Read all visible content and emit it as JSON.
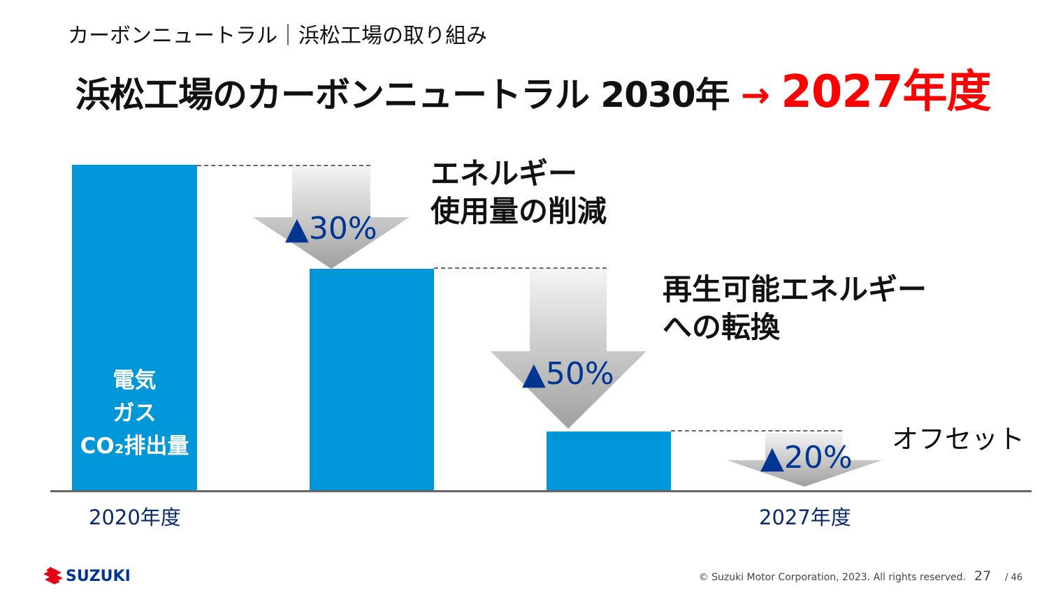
{
  "subtitle": "カーボンニュートラル｜浜松工場の取り組み",
  "title": {
    "main": "浜松工場のカーボンニュートラル 2030年",
    "arrow": "→",
    "target": "2027年度",
    "target_color": "#ff0000"
  },
  "bars": {
    "color": "#0097d9",
    "first_label": [
      "電気",
      "ガス",
      "CO₂排出量"
    ]
  },
  "steps": [
    {
      "reduction": "▲30%",
      "label": [
        "エネルギー",
        "使用量の削減"
      ]
    },
    {
      "reduction": "▲50%",
      "label": [
        "再生可能エネルギー",
        "への転換"
      ]
    },
    {
      "reduction": "▲20%",
      "label": [
        "オフセット"
      ]
    }
  ],
  "x_labels": {
    "start": "2020年度",
    "end": "2027年度"
  },
  "footer": {
    "copyright": "© Suzuki Motor Corporation, 2023. All rights reserved.",
    "page": "27",
    "total": "/ 46",
    "logo_text": "SUZUKI"
  }
}
